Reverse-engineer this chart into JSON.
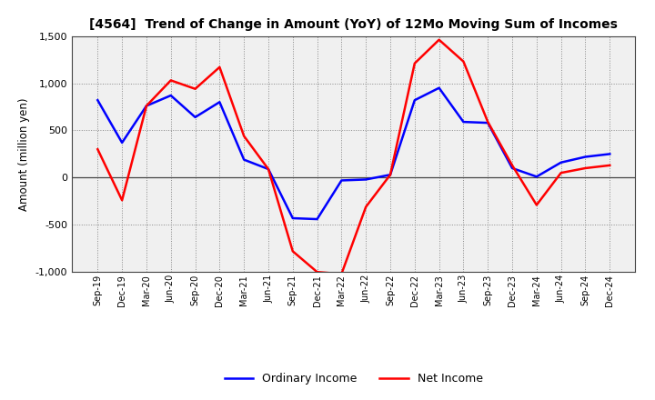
{
  "title": "[4564]  Trend of Change in Amount (YoY) of 12Mo Moving Sum of Incomes",
  "ylabel": "Amount (million yen)",
  "x_labels": [
    "Sep-19",
    "Dec-19",
    "Mar-20",
    "Jun-20",
    "Sep-20",
    "Dec-20",
    "Mar-21",
    "Jun-21",
    "Sep-21",
    "Dec-21",
    "Mar-22",
    "Jun-22",
    "Sep-22",
    "Dec-22",
    "Mar-23",
    "Jun-23",
    "Sep-23",
    "Dec-23",
    "Mar-24",
    "Jun-24",
    "Sep-24",
    "Dec-24"
  ],
  "ordinary_income": [
    820,
    370,
    760,
    870,
    640,
    800,
    190,
    90,
    -430,
    -440,
    -30,
    -20,
    30,
    820,
    950,
    590,
    580,
    100,
    10,
    160,
    220,
    250
  ],
  "net_income": [
    300,
    -240,
    760,
    1030,
    940,
    1170,
    440,
    90,
    -780,
    -1000,
    -1020,
    -310,
    30,
    1210,
    1460,
    1230,
    590,
    130,
    -290,
    50,
    100,
    130
  ],
  "ordinary_color": "#0000ff",
  "net_color": "#ff0000",
  "line_width": 1.8,
  "ylim": [
    -1000,
    1500
  ],
  "yticks": [
    -1000,
    -500,
    0,
    500,
    1000,
    1500
  ],
  "bg_color": "#ffffff",
  "plot_bg_color": "#f0f0f0",
  "grid_color": "#888888"
}
